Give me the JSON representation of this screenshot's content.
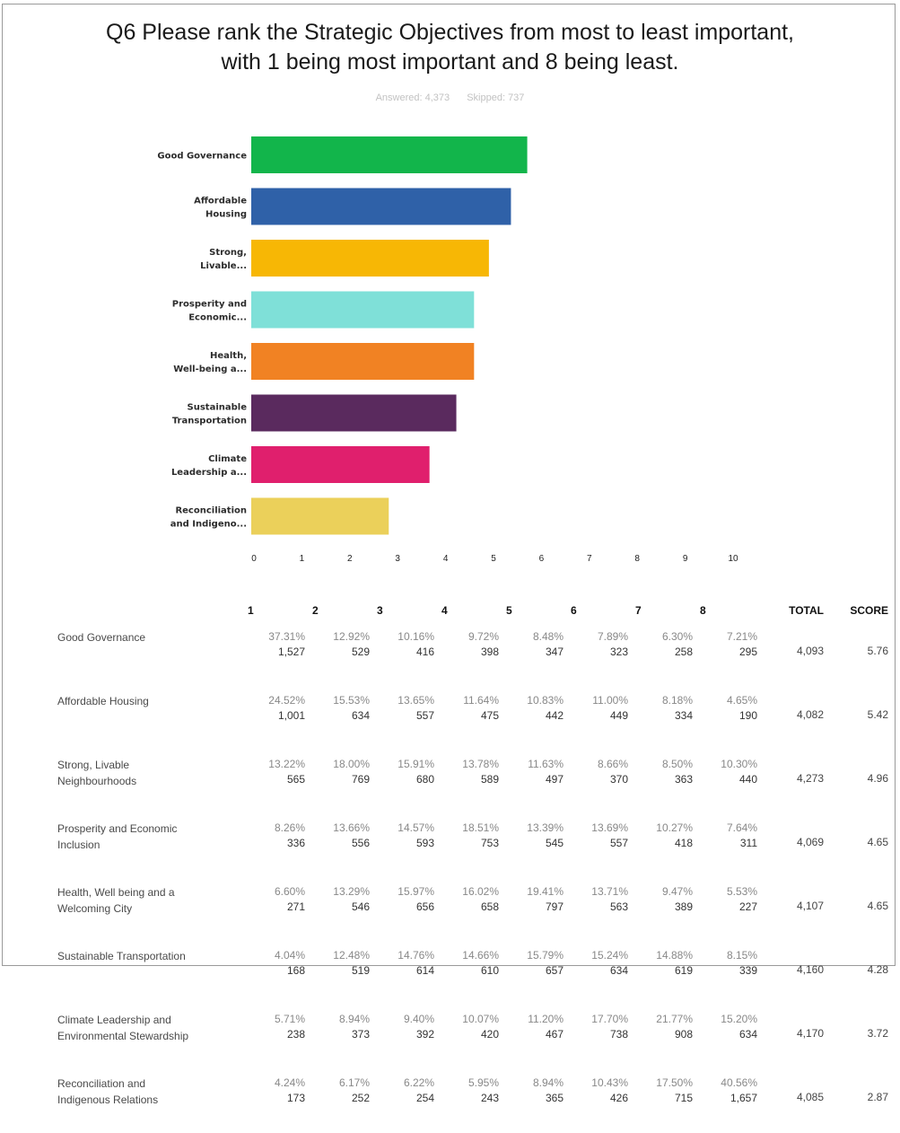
{
  "question": {
    "title_line1": "Q6 Please rank the Strategic Objectives from most to least important,",
    "title_line2": "with 1 being most important and 8 being least.",
    "answered": "Answered: 4,373",
    "skipped": "Skipped: 737"
  },
  "chart_data": {
    "type": "bar",
    "orientation": "horizontal",
    "categories": [
      "Good Governance",
      "Affordable Housing",
      "Strong, Livable...",
      "Prosperity and Economic...",
      "Health, Well-being a...",
      "Sustainable Transportation",
      "Climate Leadership a...",
      "Reconciliation and Indigeno..."
    ],
    "category_lines": [
      [
        "Good Governance"
      ],
      [
        "Affordable",
        "Housing"
      ],
      [
        "Strong,",
        "Livable..."
      ],
      [
        "Prosperity and",
        "Economic..."
      ],
      [
        "Health,",
        "Well-being a..."
      ],
      [
        "Sustainable",
        "Transportation"
      ],
      [
        "Climate",
        "Leadership a..."
      ],
      [
        "Reconciliation",
        "and Indigeno..."
      ]
    ],
    "values": [
      5.76,
      5.42,
      4.96,
      4.65,
      4.65,
      4.28,
      3.72,
      2.87
    ],
    "colors": [
      "#12b54b",
      "#2f61a8",
      "#f7b705",
      "#7fe0d8",
      "#f18223",
      "#5a2a5e",
      "#e01f6d",
      "#ebd05a"
    ],
    "xlim": [
      0,
      10
    ],
    "xticks": [
      "0",
      "1",
      "2",
      "3",
      "4",
      "5",
      "6",
      "7",
      "8",
      "9",
      "10"
    ],
    "grid": false
  },
  "table": {
    "headers": [
      "1",
      "2",
      "3",
      "4",
      "5",
      "6",
      "7",
      "8",
      "TOTAL",
      "SCORE"
    ],
    "rows": [
      {
        "name_lines": [
          "Good Governance"
        ],
        "pcts": [
          "37.31%",
          "12.92%",
          "10.16%",
          "9.72%",
          "8.48%",
          "7.89%",
          "6.30%",
          "7.21%"
        ],
        "counts": [
          "1,527",
          "529",
          "416",
          "398",
          "347",
          "323",
          "258",
          "295"
        ],
        "total": "4,093",
        "score": "5.76"
      },
      {
        "name_lines": [
          "Affordable Housing"
        ],
        "pcts": [
          "24.52%",
          "15.53%",
          "13.65%",
          "11.64%",
          "10.83%",
          "11.00%",
          "8.18%",
          "4.65%"
        ],
        "counts": [
          "1,001",
          "634",
          "557",
          "475",
          "442",
          "449",
          "334",
          "190"
        ],
        "total": "4,082",
        "score": "5.42"
      },
      {
        "name_lines": [
          "Strong, Livable",
          "Neighbourhoods"
        ],
        "pcts": [
          "13.22%",
          "18.00%",
          "15.91%",
          "13.78%",
          "11.63%",
          "8.66%",
          "8.50%",
          "10.30%"
        ],
        "counts": [
          "565",
          "769",
          "680",
          "589",
          "497",
          "370",
          "363",
          "440"
        ],
        "total": "4,273",
        "score": "4.96"
      },
      {
        "name_lines": [
          "Prosperity and Economic",
          "Inclusion"
        ],
        "pcts": [
          "8.26%",
          "13.66%",
          "14.57%",
          "18.51%",
          "13.39%",
          "13.69%",
          "10.27%",
          "7.64%"
        ],
        "counts": [
          "336",
          "556",
          "593",
          "753",
          "545",
          "557",
          "418",
          "311"
        ],
        "total": "4,069",
        "score": "4.65"
      },
      {
        "name_lines": [
          "Health, Well being and a",
          "Welcoming City"
        ],
        "pcts": [
          "6.60%",
          "13.29%",
          "15.97%",
          "16.02%",
          "19.41%",
          "13.71%",
          "9.47%",
          "5.53%"
        ],
        "counts": [
          "271",
          "546",
          "656",
          "658",
          "797",
          "563",
          "389",
          "227"
        ],
        "total": "4,107",
        "score": "4.65"
      },
      {
        "name_lines": [
          "Sustainable Transportation"
        ],
        "pcts": [
          "4.04%",
          "12.48%",
          "14.76%",
          "14.66%",
          "15.79%",
          "15.24%",
          "14.88%",
          "8.15%"
        ],
        "counts": [
          "168",
          "519",
          "614",
          "610",
          "657",
          "634",
          "619",
          "339"
        ],
        "total": "4,160",
        "score": "4.28"
      },
      {
        "name_lines": [
          "Climate Leadership and",
          "Environmental Stewardship"
        ],
        "pcts": [
          "5.71%",
          "8.94%",
          "9.40%",
          "10.07%",
          "11.20%",
          "17.70%",
          "21.77%",
          "15.20%"
        ],
        "counts": [
          "238",
          "373",
          "392",
          "420",
          "467",
          "738",
          "908",
          "634"
        ],
        "total": "4,170",
        "score": "3.72"
      },
      {
        "name_lines": [
          "Reconciliation and",
          "Indigenous Relations"
        ],
        "pcts": [
          "4.24%",
          "6.17%",
          "6.22%",
          "5.95%",
          "8.94%",
          "10.43%",
          "17.50%",
          "40.56%"
        ],
        "counts": [
          "173",
          "252",
          "254",
          "243",
          "365",
          "426",
          "715",
          "1,657"
        ],
        "total": "4,085",
        "score": "2.87"
      }
    ]
  }
}
